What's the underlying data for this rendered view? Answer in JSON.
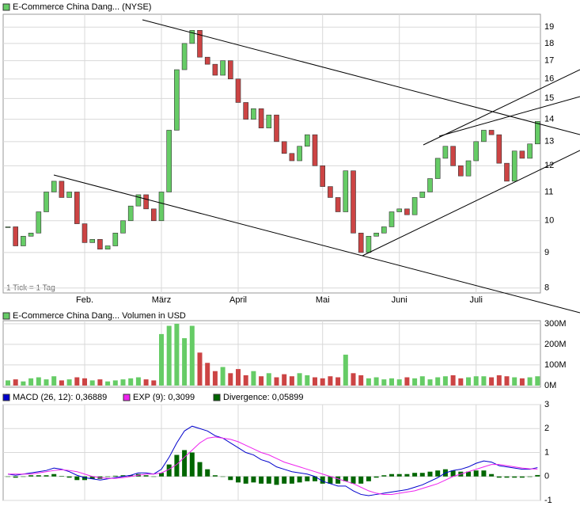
{
  "chart_data": [
    {
      "type": "candlestick",
      "title": "E-Commerce China Dang... (NYSE)",
      "note": "1 Tick = 1 Tag",
      "categories": [
        null,
        null,
        null,
        null,
        null,
        null,
        null,
        null,
        null,
        null,
        "Feb.",
        null,
        null,
        null,
        null,
        null,
        null,
        null,
        null,
        null,
        "März",
        null,
        null,
        null,
        null,
        null,
        null,
        null,
        null,
        null,
        "April",
        null,
        null,
        null,
        null,
        null,
        null,
        null,
        null,
        null,
        null,
        "Mai",
        null,
        null,
        null,
        null,
        null,
        null,
        null,
        null,
        null,
        "Juni",
        null,
        null,
        null,
        null,
        null,
        null,
        null,
        null,
        null,
        "Juli",
        null,
        null,
        null,
        null,
        null,
        null,
        null,
        null
      ],
      "values": [
        9.8,
        9.2,
        9.5,
        9.6,
        10.3,
        11.0,
        11.4,
        10.8,
        11.0,
        9.9,
        9.3,
        9.4,
        9.1,
        9.2,
        9.6,
        10.0,
        10.5,
        10.9,
        10.4,
        10.0,
        11.0,
        13.5,
        16.5,
        18.0,
        18.8,
        17.2,
        16.8,
        16.2,
        17.0,
        16.0,
        14.8,
        14.0,
        14.5,
        13.6,
        14.2,
        13.0,
        12.5,
        12.2,
        12.8,
        13.3,
        12.0,
        11.2,
        10.8,
        10.3,
        11.8,
        9.6,
        9.0,
        9.5,
        9.6,
        9.8,
        10.3,
        10.4,
        10.2,
        10.8,
        11.0,
        11.5,
        12.3,
        12.8,
        12.0,
        11.6,
        12.2,
        13.0,
        13.5,
        13.3,
        12.1,
        11.4,
        12.6,
        12.3,
        12.9,
        13.9
      ],
      "up_color": "#66cc66",
      "down_color": "#cc4444",
      "log_scale": true,
      "ylim": [
        7.87,
        19.83
      ],
      "yticks": [
        8,
        9,
        10,
        11,
        12,
        13,
        14,
        15,
        16,
        17,
        18,
        19
      ],
      "grid": true
    },
    {
      "type": "bar",
      "title": "E-Commerce China Dang... Volumen in USD",
      "values": [
        25,
        30,
        20,
        35,
        40,
        30,
        45,
        25,
        30,
        40,
        35,
        25,
        30,
        20,
        25,
        30,
        35,
        40,
        30,
        25,
        250,
        290,
        300,
        230,
        290,
        160,
        110,
        70,
        90,
        60,
        80,
        50,
        70,
        45,
        60,
        40,
        55,
        45,
        60,
        50,
        40,
        35,
        45,
        40,
        150,
        60,
        50,
        35,
        40,
        30,
        35,
        30,
        40,
        35,
        45,
        30,
        40,
        45,
        50,
        35,
        40,
        45,
        45,
        40,
        50,
        45,
        40,
        35,
        40,
        45
      ],
      "ylim": [
        -8,
        315
      ],
      "yticks": [
        {
          "value": 0,
          "label": "0M"
        },
        {
          "value": 100,
          "label": "100M"
        },
        {
          "value": 200,
          "label": "200M"
        },
        {
          "value": 300,
          "label": "300M"
        }
      ],
      "grid": true
    },
    {
      "type": "line",
      "series": [
        {
          "name": "MACD (26, 12): 0,36889",
          "color": "#0000cc",
          "values": [
            0.1,
            0.05,
            0.1,
            0.15,
            0.2,
            0.25,
            0.35,
            0.3,
            0.2,
            0.05,
            -0.05,
            -0.1,
            -0.15,
            -0.1,
            -0.05,
            0.0,
            0.05,
            0.15,
            0.15,
            0.1,
            0.3,
            0.8,
            1.4,
            1.9,
            2.1,
            2.0,
            1.9,
            1.7,
            1.6,
            1.4,
            1.2,
            1.0,
            0.9,
            0.7,
            0.6,
            0.4,
            0.3,
            0.2,
            0.15,
            0.1,
            0.0,
            -0.2,
            -0.3,
            -0.4,
            -0.4,
            -0.6,
            -0.75,
            -0.8,
            -0.75,
            -0.7,
            -0.65,
            -0.6,
            -0.55,
            -0.45,
            -0.35,
            -0.2,
            -0.05,
            0.15,
            0.25,
            0.3,
            0.4,
            0.55,
            0.65,
            0.6,
            0.45,
            0.4,
            0.35,
            0.3,
            0.3,
            0.37
          ]
        },
        {
          "name": "EXP (9): 0,3099",
          "color": "#ee22ee",
          "values": [
            0.1,
            0.1,
            0.1,
            0.1,
            0.15,
            0.2,
            0.25,
            0.28,
            0.25,
            0.2,
            0.1,
            0.0,
            -0.05,
            -0.08,
            -0.08,
            -0.05,
            0.0,
            0.05,
            0.1,
            0.1,
            0.15,
            0.3,
            0.5,
            0.8,
            1.1,
            1.4,
            1.6,
            1.65,
            1.6,
            1.55,
            1.45,
            1.3,
            1.15,
            1.0,
            0.9,
            0.75,
            0.6,
            0.5,
            0.4,
            0.3,
            0.2,
            0.1,
            0.0,
            -0.1,
            -0.2,
            -0.3,
            -0.45,
            -0.6,
            -0.7,
            -0.75,
            -0.75,
            -0.7,
            -0.65,
            -0.6,
            -0.5,
            -0.4,
            -0.3,
            -0.15,
            0.0,
            0.1,
            0.2,
            0.3,
            0.4,
            0.5,
            0.5,
            0.45,
            0.4,
            0.35,
            0.32,
            0.31
          ]
        },
        {
          "name": "Divergence: 0,05899",
          "color": "#006600",
          "type": "bar",
          "values": [
            0,
            -0.05,
            0,
            0.05,
            0.05,
            0.05,
            0.1,
            0.02,
            -0.05,
            -0.15,
            -0.15,
            -0.1,
            -0.1,
            -0.02,
            0.03,
            0.05,
            0.05,
            0.1,
            0.05,
            0,
            0.15,
            0.5,
            0.9,
            1.1,
            1.0,
            0.6,
            0.3,
            0.05,
            0,
            -0.15,
            -0.25,
            -0.3,
            -0.25,
            -0.3,
            -0.3,
            -0.35,
            -0.3,
            -0.3,
            -0.25,
            -0.2,
            -0.2,
            -0.3,
            -0.3,
            -0.3,
            -0.2,
            -0.3,
            -0.3,
            -0.2,
            -0.05,
            0.05,
            0.1,
            0.1,
            0.1,
            0.15,
            0.15,
            0.2,
            0.25,
            0.3,
            0.25,
            0.2,
            0.2,
            0.25,
            0.25,
            0.1,
            -0.05,
            -0.05,
            -0.05,
            -0.05,
            -0.02,
            0.06
          ]
        }
      ],
      "ylim": [
        -1,
        3
      ],
      "yticks": [
        -1,
        0,
        1,
        2,
        3
      ],
      "grid": true
    }
  ]
}
